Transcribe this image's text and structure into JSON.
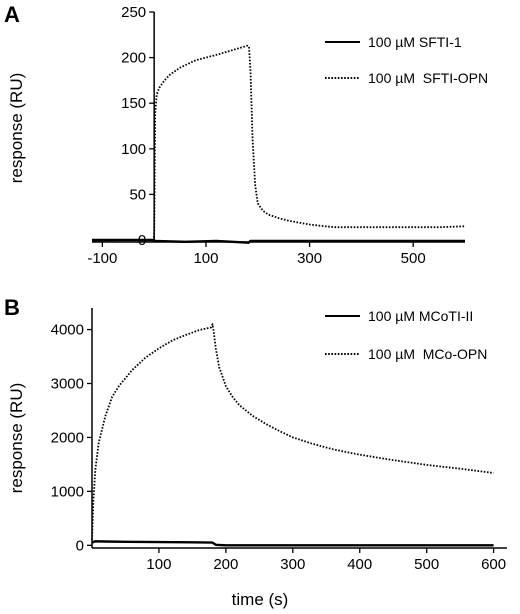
{
  "chart_data": [
    {
      "type": "line",
      "panel_label": "A",
      "ylabel": "response (RU)",
      "xlabel": "",
      "xlim": [
        -120,
        600
      ],
      "ylim": [
        0,
        250
      ],
      "x_ticks": [
        -100,
        100,
        300,
        500
      ],
      "y_ticks": [
        0,
        50,
        100,
        150,
        200,
        250
      ],
      "legend_position": "top-right",
      "series": [
        {
          "name": "100 µM SFTI-1",
          "style": "solid",
          "x": [
            -120,
            -60,
            0,
            1,
            60,
            120,
            182,
            186,
            200,
            300,
            400,
            500,
            600
          ],
          "y": [
            0,
            0,
            0,
            -1,
            -2,
            -1,
            -3,
            -1,
            -1,
            -1,
            -1,
            -1,
            -1
          ]
        },
        {
          "name": "100 µM  SFTI-OPN",
          "style": "dotted",
          "x": [
            -120,
            -60,
            -1,
            0,
            2,
            5,
            10,
            20,
            30,
            50,
            80,
            120,
            150,
            180,
            183,
            186,
            190,
            195,
            200,
            210,
            220,
            240,
            260,
            280,
            300,
            330,
            350,
            400,
            450,
            500,
            550,
            600
          ],
          "y": [
            -1,
            0,
            0,
            8,
            140,
            160,
            167,
            175,
            181,
            189,
            197,
            203,
            208,
            213,
            212,
            185,
            110,
            60,
            40,
            32,
            28,
            24,
            21,
            19,
            17,
            15,
            14,
            14,
            14,
            14,
            14,
            15
          ]
        }
      ]
    },
    {
      "type": "line",
      "panel_label": "B",
      "ylabel": "response (RU)",
      "xlabel": "time (s)",
      "xlim": [
        0,
        620
      ],
      "ylim": [
        -50,
        4400
      ],
      "x_ticks": [
        100,
        200,
        300,
        400,
        500,
        600
      ],
      "y_ticks": [
        0,
        1000,
        2000,
        3000,
        4000
      ],
      "legend_position": "top-right",
      "series": [
        {
          "name": "100 µM MCoTI-II",
          "style": "solid",
          "x": [
            0,
            5,
            20,
            50,
            100,
            150,
            180,
            185,
            200,
            300,
            400,
            500,
            600
          ],
          "y": [
            50,
            75,
            70,
            65,
            60,
            55,
            50,
            10,
            0,
            0,
            0,
            0,
            0
          ]
        },
        {
          "name": "100 µM  MCo-OPN",
          "style": "dotted",
          "x": [
            0,
            2,
            5,
            10,
            20,
            30,
            40,
            60,
            80,
            100,
            120,
            140,
            160,
            178,
            180,
            182,
            185,
            190,
            200,
            210,
            220,
            240,
            260,
            280,
            300,
            330,
            360,
            400,
            450,
            500,
            550,
            600
          ],
          "y": [
            100,
            800,
            1400,
            1900,
            2400,
            2750,
            2950,
            3250,
            3480,
            3650,
            3800,
            3900,
            3990,
            4040,
            4100,
            3950,
            3650,
            3300,
            2950,
            2750,
            2600,
            2400,
            2250,
            2120,
            2000,
            1880,
            1780,
            1680,
            1580,
            1490,
            1420,
            1340
          ]
        }
      ]
    }
  ]
}
